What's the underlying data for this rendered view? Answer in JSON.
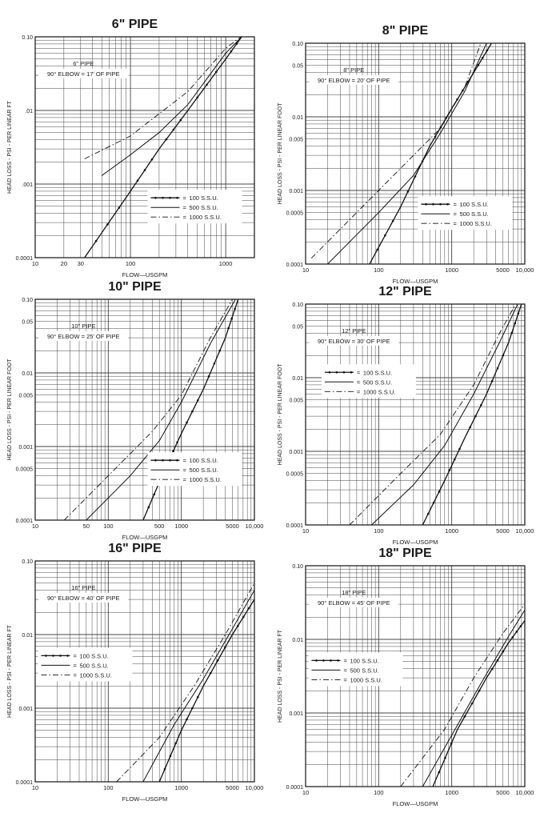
{
  "chart_data": [
    {
      "type": "line",
      "title": "6\" PIPE",
      "annotation_line1": "6\" PIPE",
      "annotation_line2": "90° ELBOW = 17' OF PIPE",
      "xlabel": "FLOW—USGPM",
      "ylabel": "HEAD LOSS - PSI - PER LINEAR FT",
      "xscale": "log",
      "yscale": "log",
      "xlim": [
        10,
        2000
      ],
      "ylim": [
        0.0001,
        0.1
      ],
      "xticks": [
        10,
        20,
        30,
        100,
        1000
      ],
      "xtick_labels": [
        "10",
        "20",
        "30",
        "100",
        "1000"
      ],
      "yticks": [
        0.0001,
        0.001,
        0.01,
        0.1
      ],
      "ytick_labels": [
        "0.0001",
        ".001",
        ".01",
        "0.10"
      ],
      "grid": true,
      "series": [
        {
          "name": "100 S.S.U.",
          "style": "dotted-solid",
          "x": [
            33,
            100,
            200,
            400,
            1000,
            1700
          ],
          "y": [
            0.0001,
            0.0008,
            0.003,
            0.01,
            0.05,
            0.13
          ]
        },
        {
          "name": "500 S.S.U.",
          "style": "solid",
          "x": [
            50,
            100,
            200,
            400,
            1000,
            1800
          ],
          "y": [
            0.0013,
            0.0025,
            0.005,
            0.012,
            0.06,
            0.13
          ]
        },
        {
          "name": "1000 S.S.U.",
          "style": "dash-dot",
          "x": [
            33,
            100,
            200,
            400,
            1000,
            1900
          ],
          "y": [
            0.0022,
            0.0045,
            0.009,
            0.018,
            0.07,
            0.13
          ]
        }
      ],
      "legend_position": "lower-right"
    },
    {
      "type": "line",
      "title": "8\" PIPE",
      "annotation_line1": "8\" PIPE",
      "annotation_line2": "90° ELBOW = 20' OF PIPE",
      "xlabel": "FLOW—USGPM",
      "ylabel": "HEAD LOSS - PSI - PER LINEAR FOOT",
      "xscale": "log",
      "yscale": "log",
      "xlim": [
        10,
        10000
      ],
      "ylim": [
        0.0001,
        0.1
      ],
      "xticks": [
        10,
        100,
        1000,
        5000,
        10000
      ],
      "xtick_labels": [
        "10",
        "100",
        "1000",
        "5000",
        "10,000"
      ],
      "yticks": [
        0.0001,
        0.0005,
        0.001,
        0.005,
        0.01,
        0.05,
        0.1
      ],
      "ytick_labels": [
        "0.0001",
        "0.0005",
        "0.001",
        "0.005",
        "0.01",
        "0.05",
        "0.10"
      ],
      "grid": true,
      "series": [
        {
          "name": "100 S.S.U.",
          "style": "dotted-solid",
          "x": [
            75,
            200,
            500,
            1000,
            2000,
            3500
          ],
          "y": [
            0.0001,
            0.0006,
            0.004,
            0.013,
            0.04,
            0.1
          ]
        },
        {
          "name": "500 S.S.U.",
          "style": "solid",
          "x": [
            20,
            100,
            300,
            700,
            1500,
            3000
          ],
          "y": [
            0.0001,
            0.0005,
            0.0016,
            0.006,
            0.022,
            0.1
          ]
        },
        {
          "name": "1000 S.S.U.",
          "style": "dash-dot",
          "x": [
            12,
            100,
            300,
            700,
            1500,
            2500
          ],
          "y": [
            0.00012,
            0.001,
            0.003,
            0.007,
            0.025,
            0.1
          ]
        }
      ],
      "legend_position": "lower-right"
    },
    {
      "type": "line",
      "title": "10\" PIPE",
      "annotation_line1": "10\" PIPE",
      "annotation_line2": "90° ELBOW = 25' OF PIPE",
      "xlabel": "FLOW—USGPM",
      "ylabel": "HEAD LOSS - PSI - PER LINEAR FOOT",
      "xscale": "log",
      "yscale": "log",
      "xlim": [
        10,
        10000
      ],
      "ylim": [
        0.0001,
        0.1
      ],
      "xticks": [
        10,
        50,
        100,
        500,
        1000,
        5000,
        10000
      ],
      "xtick_labels": [
        "10",
        "50",
        "100",
        "500",
        "1000",
        "5000",
        "10,000"
      ],
      "yticks": [
        0.0001,
        0.0005,
        0.001,
        0.005,
        0.01,
        0.05,
        0.1
      ],
      "ytick_labels": [
        "0.0001",
        "0.0005",
        "0.001",
        "0.005",
        "0.01",
        "0.05",
        "0.10"
      ],
      "grid": true,
      "series": [
        {
          "name": "100 S.S.U.",
          "style": "dotted-solid",
          "x": [
            300,
            600,
            1000,
            2000,
            4000,
            6000
          ],
          "y": [
            0.0001,
            0.0005,
            0.0015,
            0.006,
            0.03,
            0.1
          ]
        },
        {
          "name": "500 S.S.U.",
          "style": "solid",
          "x": [
            50,
            200,
            500,
            1000,
            2500,
            5500
          ],
          "y": [
            0.0001,
            0.0004,
            0.0012,
            0.004,
            0.025,
            0.1
          ]
        },
        {
          "name": "1000 S.S.U.",
          "style": "dash-dot",
          "x": [
            25,
            100,
            400,
            1000,
            2500,
            5000
          ],
          "y": [
            0.0001,
            0.0004,
            0.0016,
            0.005,
            0.03,
            0.1
          ]
        }
      ],
      "legend_position": "lower-right"
    },
    {
      "type": "line",
      "title": "12\" PIPE",
      "annotation_line1": "12\" PIPE",
      "annotation_line2": "90° ELBOW = 30' OF PIPE",
      "xlabel": "FLOW—USGPM",
      "ylabel": "HEAD LOSS - PSI - PER LINEAR FOOT",
      "xscale": "log",
      "yscale": "log",
      "xlim": [
        10,
        10000
      ],
      "ylim": [
        0.0001,
        0.1
      ],
      "xticks": [
        10,
        100,
        1000,
        5000,
        10000
      ],
      "xtick_labels": [
        "10",
        "100",
        "1000",
        "5000",
        "10,000"
      ],
      "yticks": [
        0.0001,
        0.0005,
        0.001,
        0.005,
        0.01,
        0.05,
        0.1
      ],
      "ytick_labels": [
        "0.0001",
        "0.0005",
        "0.001",
        "0.005",
        "0.01",
        "0.05",
        "0.10"
      ],
      "grid": true,
      "series": [
        {
          "name": "100 S.S.U.",
          "style": "dotted-solid",
          "x": [
            400,
            800,
            1500,
            3000,
            6000,
            9000
          ],
          "y": [
            0.0001,
            0.0004,
            0.0015,
            0.006,
            0.03,
            0.1
          ]
        },
        {
          "name": "500 S.S.U.",
          "style": "solid",
          "x": [
            80,
            300,
            800,
            2000,
            4500,
            8000
          ],
          "y": [
            0.0001,
            0.00035,
            0.0012,
            0.006,
            0.03,
            0.1
          ]
        },
        {
          "name": "1000 S.S.U.",
          "style": "dash-dot",
          "x": [
            40,
            200,
            700,
            2000,
            4500,
            7500
          ],
          "y": [
            0.0001,
            0.0005,
            0.0017,
            0.008,
            0.04,
            0.1
          ]
        }
      ],
      "legend_position": "upper-left"
    },
    {
      "type": "line",
      "title": "16\" PIPE",
      "annotation_line1": "16\" PIPE",
      "annotation_line2": "90° ELBOW = 40' OF PIPE",
      "xlabel": "FLOW—USGPM",
      "ylabel": "HEAD LOSS - PSI - PER LINEAR FT",
      "xscale": "log",
      "yscale": "log",
      "xlim": [
        10,
        10000
      ],
      "ylim": [
        0.0001,
        0.1
      ],
      "xticks": [
        10,
        100,
        1000,
        5000,
        10000
      ],
      "xtick_labels": [
        "10",
        "100",
        "1000",
        "5000",
        "10,000"
      ],
      "yticks": [
        0.0001,
        0.001,
        0.01,
        0.1
      ],
      "ytick_labels": [
        "0.0001",
        "0.001",
        "0.01",
        "0.10"
      ],
      "grid": true,
      "series": [
        {
          "name": "100 S.S.U.",
          "style": "dotted-solid",
          "x": [
            500,
            1000,
            2000,
            5000,
            10000
          ],
          "y": [
            0.0001,
            0.0005,
            0.002,
            0.01,
            0.03
          ]
        },
        {
          "name": "500 S.S.U.",
          "style": "solid",
          "x": [
            300,
            800,
            2000,
            5000,
            10000
          ],
          "y": [
            0.0001,
            0.0006,
            0.0025,
            0.012,
            0.04
          ]
        },
        {
          "name": "1000 S.S.U.",
          "style": "dash-dot",
          "x": [
            130,
            500,
            1500,
            4000,
            10000
          ],
          "y": [
            0.0001,
            0.0004,
            0.002,
            0.01,
            0.05
          ]
        }
      ],
      "legend_position": "middle-left"
    },
    {
      "type": "line",
      "title": "18\" PIPE",
      "annotation_line1": "18\" PIPE",
      "annotation_line2": "90° ELBOW = 45' OF PIPE",
      "xlabel": "FLOW—USGPM",
      "ylabel": "HEAD LOSS - PSI - PER LINEAR FT",
      "xscale": "log",
      "yscale": "log",
      "xlim": [
        10,
        10000
      ],
      "ylim": [
        0.0001,
        0.1
      ],
      "xticks": [
        10,
        100,
        1000,
        5000,
        10000
      ],
      "xtick_labels": [
        "10",
        "100",
        "1000",
        "5000",
        "10,000"
      ],
      "yticks": [
        0.0001,
        0.001,
        0.01,
        0.1
      ],
      "ytick_labels": [
        "0.0001",
        "0.001",
        "0.01",
        "0.10"
      ],
      "grid": true,
      "series": [
        {
          "name": "100 S.S.U.",
          "style": "dotted-solid",
          "x": [
            550,
            1200,
            3000,
            6000,
            10000
          ],
          "y": [
            0.0001,
            0.0006,
            0.003,
            0.009,
            0.018
          ]
        },
        {
          "name": "500 S.S.U.",
          "style": "solid",
          "x": [
            400,
            1000,
            2500,
            6000,
            10000
          ],
          "y": [
            0.0001,
            0.0005,
            0.0025,
            0.011,
            0.025
          ]
        },
        {
          "name": "1000 S.S.U.",
          "style": "dash-dot",
          "x": [
            200,
            800,
            2000,
            5000,
            10000
          ],
          "y": [
            0.0001,
            0.0006,
            0.003,
            0.012,
            0.03
          ]
        }
      ],
      "legend_position": "middle-left"
    }
  ]
}
